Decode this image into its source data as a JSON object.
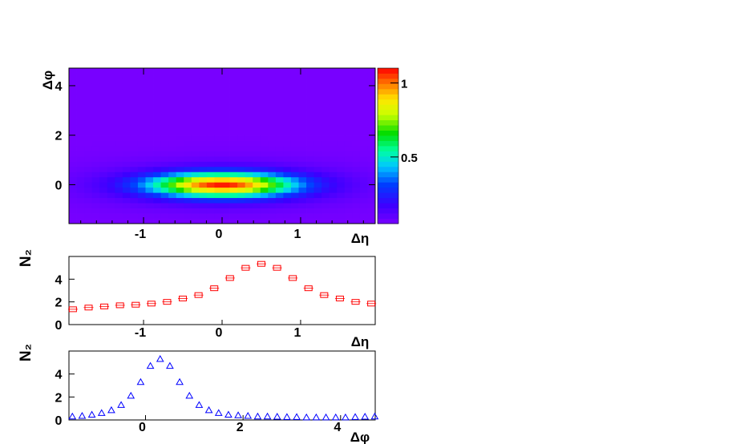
{
  "chart_data": [
    {
      "type": "heatmap",
      "xlabel": "Δη",
      "ylabel": "Δφ",
      "xlim": [
        -1.95,
        1.95
      ],
      "ylim": [
        -1.57,
        4.71
      ],
      "xticks": [
        -1,
        0,
        1
      ],
      "yticks": [
        0,
        2,
        4
      ],
      "colorbar": {
        "range": [
          0.05,
          1.1
        ],
        "ticks": [
          0.5,
          1
        ],
        "tick_labels": [
          "0.5",
          "1"
        ]
      },
      "peak": {
        "x": 0,
        "y": 0,
        "value": 1.08
      },
      "width_x": 0.62,
      "width_y": 0.32,
      "pedestal": 0.17,
      "nx": 40,
      "ny": 30
    },
    {
      "type": "scatter",
      "marker": "square",
      "color": "#ff0000",
      "xlabel": "Δη",
      "ylabel": "N₂",
      "xlim": [
        -1.95,
        1.95
      ],
      "ylim": [
        0,
        6
      ],
      "xticks": [
        -1,
        0,
        1
      ],
      "yticks": [
        0,
        2,
        4
      ],
      "x": [
        -1.9,
        -1.7,
        -1.5,
        -1.3,
        -1.1,
        -0.9,
        -0.7,
        -0.5,
        -0.3,
        -0.1,
        0.1,
        0.3,
        0.5,
        0.7,
        0.9,
        1.1,
        1.3,
        1.5,
        1.7,
        1.9
      ],
      "y": [
        1.35,
        1.5,
        1.6,
        1.7,
        1.75,
        1.85,
        2.0,
        2.3,
        2.6,
        3.2,
        4.1,
        5.0,
        5.35,
        5.0,
        4.1,
        3.2,
        2.6,
        2.3,
        2.0,
        1.85
      ]
    },
    {
      "type": "scatter",
      "marker": "triangle",
      "color": "#0000ff",
      "xlabel": "Δφ",
      "ylabel": "N₂",
      "xlim": [
        -1.57,
        4.71
      ],
      "ylim": [
        0,
        6
      ],
      "xticks": [
        0,
        2,
        4
      ],
      "yticks": [
        0,
        2,
        4
      ],
      "x": [
        -1.5,
        -1.3,
        -1.1,
        -0.9,
        -0.7,
        -0.5,
        -0.3,
        -0.1,
        0.1,
        0.3,
        0.5,
        0.7,
        0.9,
        1.1,
        1.3,
        1.5,
        1.7,
        1.9,
        2.1,
        2.3,
        2.5,
        2.7,
        2.9,
        3.1,
        3.3,
        3.5,
        3.7,
        3.9,
        4.1,
        4.3,
        4.5,
        4.7
      ],
      "y": [
        0.3,
        0.35,
        0.45,
        0.6,
        0.85,
        1.3,
        2.1,
        3.3,
        4.7,
        5.3,
        4.7,
        3.3,
        2.1,
        1.3,
        0.85,
        0.6,
        0.45,
        0.4,
        0.35,
        0.3,
        0.3,
        0.28,
        0.25,
        0.25,
        0.22,
        0.22,
        0.22,
        0.22,
        0.22,
        0.25,
        0.28,
        0.3
      ]
    }
  ]
}
